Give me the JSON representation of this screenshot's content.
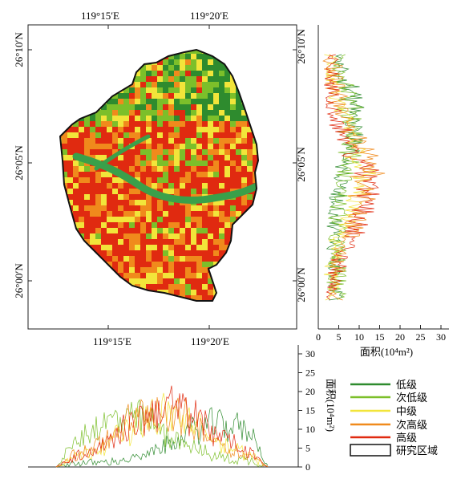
{
  "map": {
    "top_lon_labels": [
      "119°15′E",
      "119°20′E"
    ],
    "bottom_lon_labels": [
      "119°15′E",
      "119°20′E"
    ],
    "left_lat_labels": [
      "26°10′N",
      "26°05′N",
      "26°00′N"
    ],
    "right_lat_labels": [
      "26°10′N",
      "26°05′N",
      "26°00′N"
    ]
  },
  "right_profile": {
    "axis_title": "面积(10⁴m²)",
    "ticks": [
      "0",
      "5",
      "10",
      "15",
      "20",
      "25",
      "30"
    ]
  },
  "bottom_profile": {
    "axis_title": "面积(10⁴m²)",
    "ticks": [
      "0",
      "5",
      "10",
      "15",
      "20",
      "25",
      "30"
    ]
  },
  "legend": {
    "items": [
      {
        "label": "低级",
        "color": "#2e8b2e"
      },
      {
        "label": "次低级",
        "color": "#7cbf2a"
      },
      {
        "label": "中级",
        "color": "#f2e53a"
      },
      {
        "label": "次高级",
        "color": "#f08a1c"
      },
      {
        "label": "高级",
        "color": "#e02a10"
      }
    ],
    "boundary_label": "研究区域"
  },
  "colors": {
    "low": "#2e8b2e",
    "sublow": "#7cbf2a",
    "mid": "#f2e53a",
    "subhigh": "#f08a1c",
    "high": "#e02a10",
    "river": "#3aa04a",
    "boundary": "#111111"
  }
}
